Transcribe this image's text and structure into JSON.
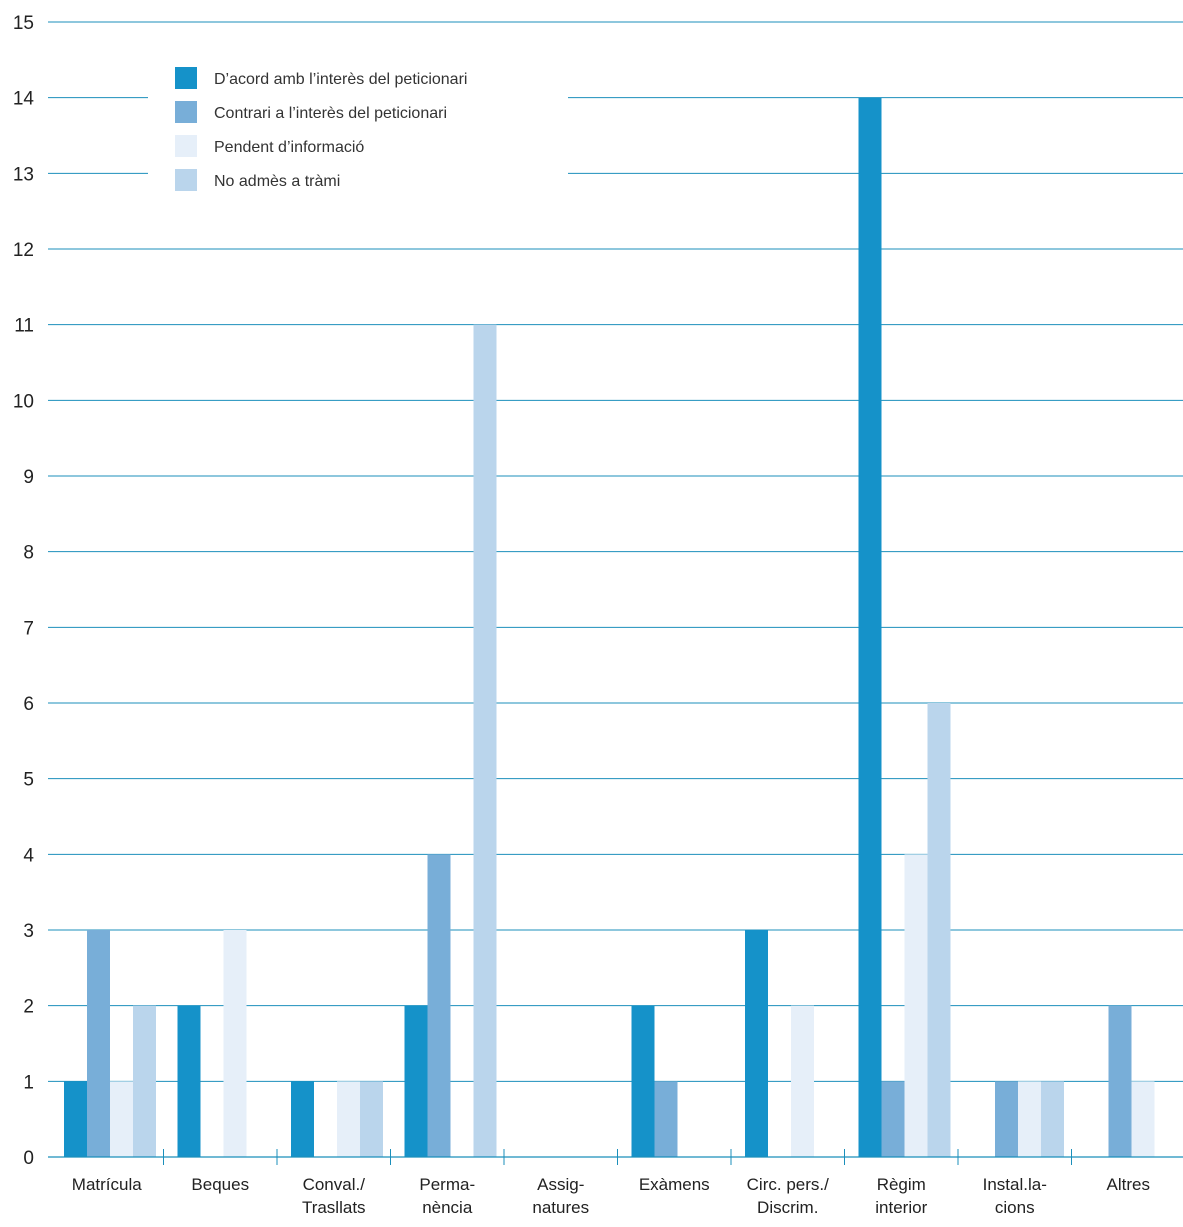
{
  "chart_data": {
    "type": "bar",
    "title": "",
    "xlabel": "",
    "ylabel": "",
    "ylim": [
      0,
      15
    ],
    "yticks": [
      0,
      1,
      2,
      3,
      4,
      5,
      6,
      7,
      8,
      9,
      10,
      11,
      12,
      13,
      14,
      15
    ],
    "grid": true,
    "legend_position": "top-left",
    "categories": [
      [
        "Matrícula"
      ],
      [
        "Beques"
      ],
      [
        "Conval./",
        "Trasllats"
      ],
      [
        "Perma-",
        "nència"
      ],
      [
        "Assig-",
        "natures"
      ],
      [
        "Exàmens"
      ],
      [
        "Circ. pers./",
        "Discrim."
      ],
      [
        "Règim",
        "interior"
      ],
      [
        "Instal.la-",
        "cions"
      ],
      [
        "Altres"
      ]
    ],
    "series": [
      {
        "name": "D’acord amb l’interès del peticionari",
        "color": "#1592c9",
        "values": [
          1,
          2,
          1,
          2,
          0,
          2,
          3,
          14,
          0,
          0
        ]
      },
      {
        "name": "Contrari a l’interès del peticionari",
        "color": "#78aed8",
        "values": [
          3,
          0,
          0,
          4,
          0,
          1,
          0,
          1,
          1,
          2
        ]
      },
      {
        "name": "Pendent d’informació",
        "color": "#e6eff9",
        "values": [
          1,
          3,
          1,
          0,
          0,
          0,
          2,
          4,
          1,
          1
        ]
      },
      {
        "name": "No admès a tràmi",
        "color": "#bad5ec",
        "values": [
          2,
          0,
          1,
          11,
          0,
          0,
          0,
          6,
          1,
          0
        ]
      }
    ],
    "colors": {
      "gridline": "#1b8fbb",
      "axis": "#1b8fbb",
      "text": "#222222"
    }
  }
}
